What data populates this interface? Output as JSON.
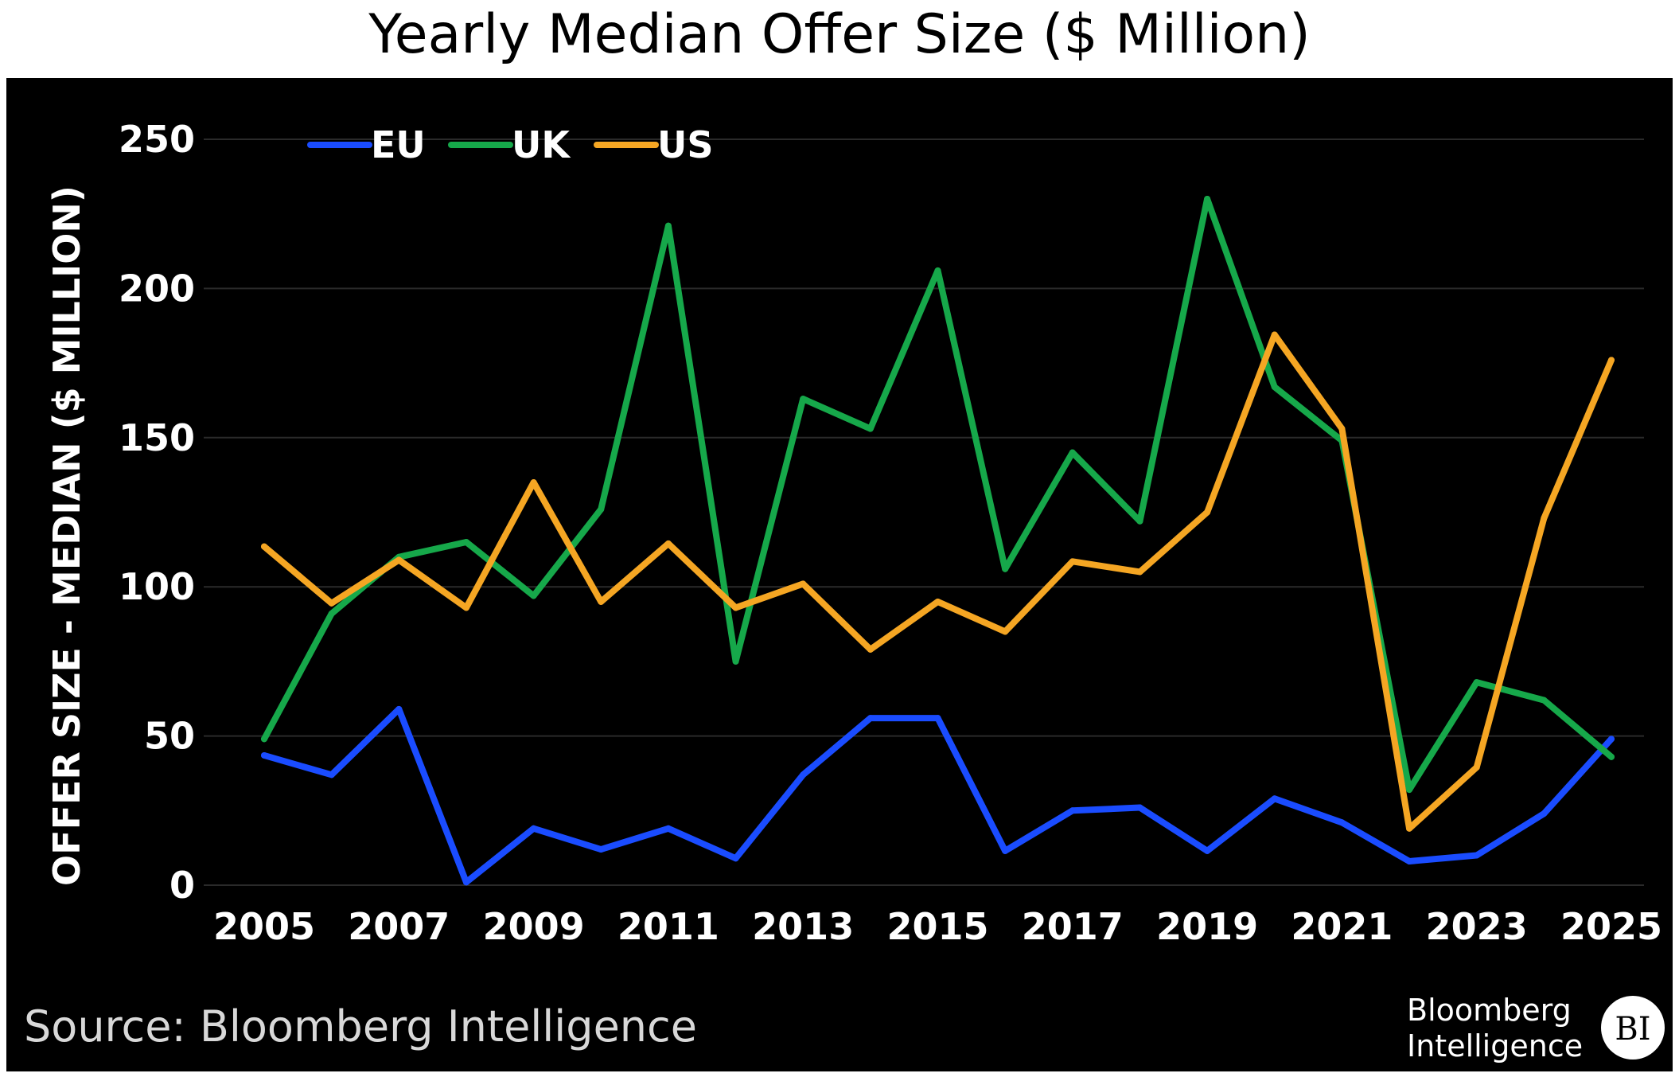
{
  "chart_data": {
    "type": "line",
    "title": "Yearly Median Offer Size ($ Million)",
    "xlabel": "",
    "ylabel": "OFFER SIZE - MEDIAN ($ MILLION)",
    "x": [
      2005,
      2006,
      2007,
      2008,
      2009,
      2010,
      2011,
      2012,
      2013,
      2014,
      2015,
      2016,
      2017,
      2018,
      2019,
      2020,
      2021,
      2022,
      2023,
      2024,
      2025
    ],
    "x_tick_labels": [
      "2005",
      "2007",
      "2009",
      "2011",
      "2013",
      "2015",
      "2017",
      "2019",
      "2021",
      "2023",
      "2025"
    ],
    "y_tick_labels": [
      "0",
      "50",
      "100",
      "150",
      "200",
      "250"
    ],
    "ylim": [
      0,
      250
    ],
    "xlim": [
      2005,
      2025
    ],
    "grid": true,
    "legend_position": "top-left",
    "background": "#000000",
    "series": [
      {
        "name": "EU",
        "color": "#1a4cff",
        "values": [
          43.5,
          37,
          59,
          1,
          19,
          12,
          19,
          9,
          37,
          56,
          56,
          11.5,
          25,
          26,
          11.5,
          29,
          21,
          8,
          10,
          24,
          49
        ]
      },
      {
        "name": "UK",
        "color": "#16a84a",
        "values": [
          49,
          91,
          110,
          115,
          97,
          126,
          221,
          75,
          163,
          153,
          206,
          106,
          145,
          122,
          230,
          167,
          149,
          32,
          68,
          62,
          43
        ]
      },
      {
        "name": "US",
        "color": "#f5a623",
        "values": [
          113.5,
          94.5,
          109,
          93,
          135,
          95,
          114.5,
          93,
          101,
          79,
          95,
          85,
          108.5,
          105,
          125,
          184.5,
          153,
          19,
          39.5,
          123,
          176
        ]
      }
    ]
  },
  "footer": {
    "source": "Source: Bloomberg Intelligence",
    "logo_line1": "Bloomberg",
    "logo_line2": "Intelligence",
    "logo_badge": "BI"
  }
}
